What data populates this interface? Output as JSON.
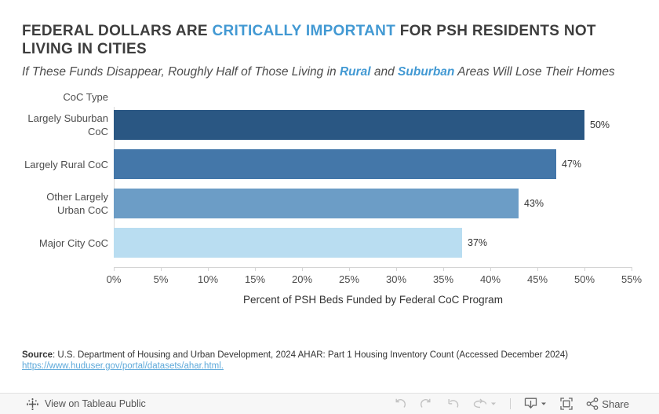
{
  "header": {
    "title_pre": "FEDERAL DOLLARS ARE ",
    "title_accent": "CRITICALLY IMPORTANT",
    "title_post": " FOR PSH RESIDENTS NOT LIVING IN CITIES",
    "subtitle_pre": "If These Funds Disappear, Roughly Half of Those Living in ",
    "subtitle_accent1": "Rural",
    "subtitle_mid": " and ",
    "subtitle_accent2": "Suburban",
    "subtitle_post": " Areas Will Lose Their Homes"
  },
  "chart_data": {
    "type": "bar",
    "orientation": "horizontal",
    "column_header": "CoC Type",
    "categories": [
      "Largely Suburban CoC",
      "Largely Rural CoC",
      "Other Largely Urban CoC",
      "Major City CoC"
    ],
    "values": [
      50,
      47,
      43,
      37
    ],
    "value_labels": [
      "50%",
      "47%",
      "43%",
      "37%"
    ],
    "bar_colors": [
      "#2a5783",
      "#4477a9",
      "#6c9dc6",
      "#b9ddf1"
    ],
    "x_ticks": [
      "0%",
      "5%",
      "10%",
      "15%",
      "20%",
      "25%",
      "30%",
      "35%",
      "40%",
      "45%",
      "50%",
      "55%"
    ],
    "xlim": [
      0,
      55
    ],
    "xlabel": "Percent of PSH Beds Funded by Federal CoC Program",
    "grid": false,
    "legend": false
  },
  "source": {
    "label": "Source",
    "text": ": U.S. Department of Housing and Urban Development, 2024 AHAR: Part 1 Housing Inventory Count (Accessed December 2024)",
    "link": "https://www.huduser.gov/portal/datasets/ahar.html."
  },
  "toolbar": {
    "view_label": "View on Tableau Public",
    "share_label": "Share"
  },
  "colors": {
    "accent_blue": "#4299d3",
    "title_text": "#3d3d3d",
    "link_blue": "#5ea9da",
    "disabled_icon": "#c2c2c2",
    "enabled_icon": "#666666"
  }
}
